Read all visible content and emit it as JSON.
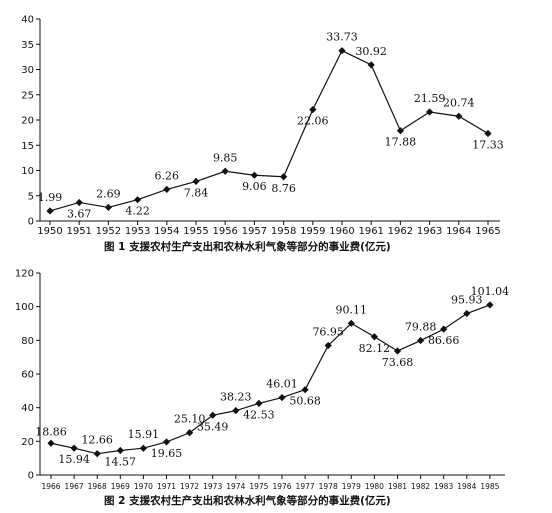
{
  "chart_data": [
    {
      "type": "line",
      "caption": "图 1   支援农村生产支出和农林水利气象等部分的事业费(亿元)",
      "categories": [
        "1950",
        "1951",
        "1952",
        "1953",
        "1954",
        "1955",
        "1956",
        "1957",
        "1958",
        "1959",
        "1960",
        "1961",
        "1962",
        "1963",
        "1964",
        "1965"
      ],
      "values": [
        1.99,
        3.67,
        2.69,
        4.22,
        6.26,
        7.84,
        9.85,
        9.06,
        8.76,
        22.06,
        33.73,
        30.92,
        17.88,
        21.59,
        20.74,
        17.33
      ],
      "value_labels": [
        "1.99",
        "3.67",
        "2.69",
        "4.22",
        "6.26",
        "7.84",
        "9.85",
        "9.06",
        "8.76",
        "22.06",
        "33.73",
        "30.92",
        "17.88",
        "21.59",
        "20.74",
        "17.33"
      ],
      "yticks": [
        "0",
        "5",
        "10",
        "15",
        "20",
        "25",
        "30",
        "35",
        "40"
      ],
      "ylim": [
        0,
        40
      ]
    },
    {
      "type": "line",
      "caption": "图 2   支援农村生产支出和农林水利气象等部分的事业费(亿元)",
      "categories": [
        "1966",
        "1967",
        "1968",
        "1969",
        "1970",
        "1971",
        "1972",
        "1973",
        "1974",
        "1975",
        "1976",
        "1977",
        "1978",
        "1979",
        "1980",
        "1981",
        "1982",
        "1983",
        "1984",
        "1985"
      ],
      "values": [
        18.86,
        15.94,
        12.66,
        14.57,
        15.91,
        19.65,
        25.1,
        35.49,
        38.23,
        42.53,
        46.01,
        50.68,
        76.95,
        90.11,
        82.12,
        73.68,
        79.88,
        86.66,
        95.93,
        101.04
      ],
      "value_labels": [
        "18.86",
        "15.94",
        "12.66",
        "14.57",
        "15.91",
        "19.65",
        "25.10",
        "35.49",
        "38.23",
        "42.53",
        "46.01",
        "50.68",
        "76.95",
        "90.11",
        "82.12",
        "73.68",
        "79.88",
        "86.66",
        "95.93",
        "101.04"
      ],
      "yticks": [
        "0",
        "20",
        "40",
        "60",
        "80",
        "100",
        "120"
      ],
      "ylim": [
        0,
        120
      ]
    }
  ]
}
